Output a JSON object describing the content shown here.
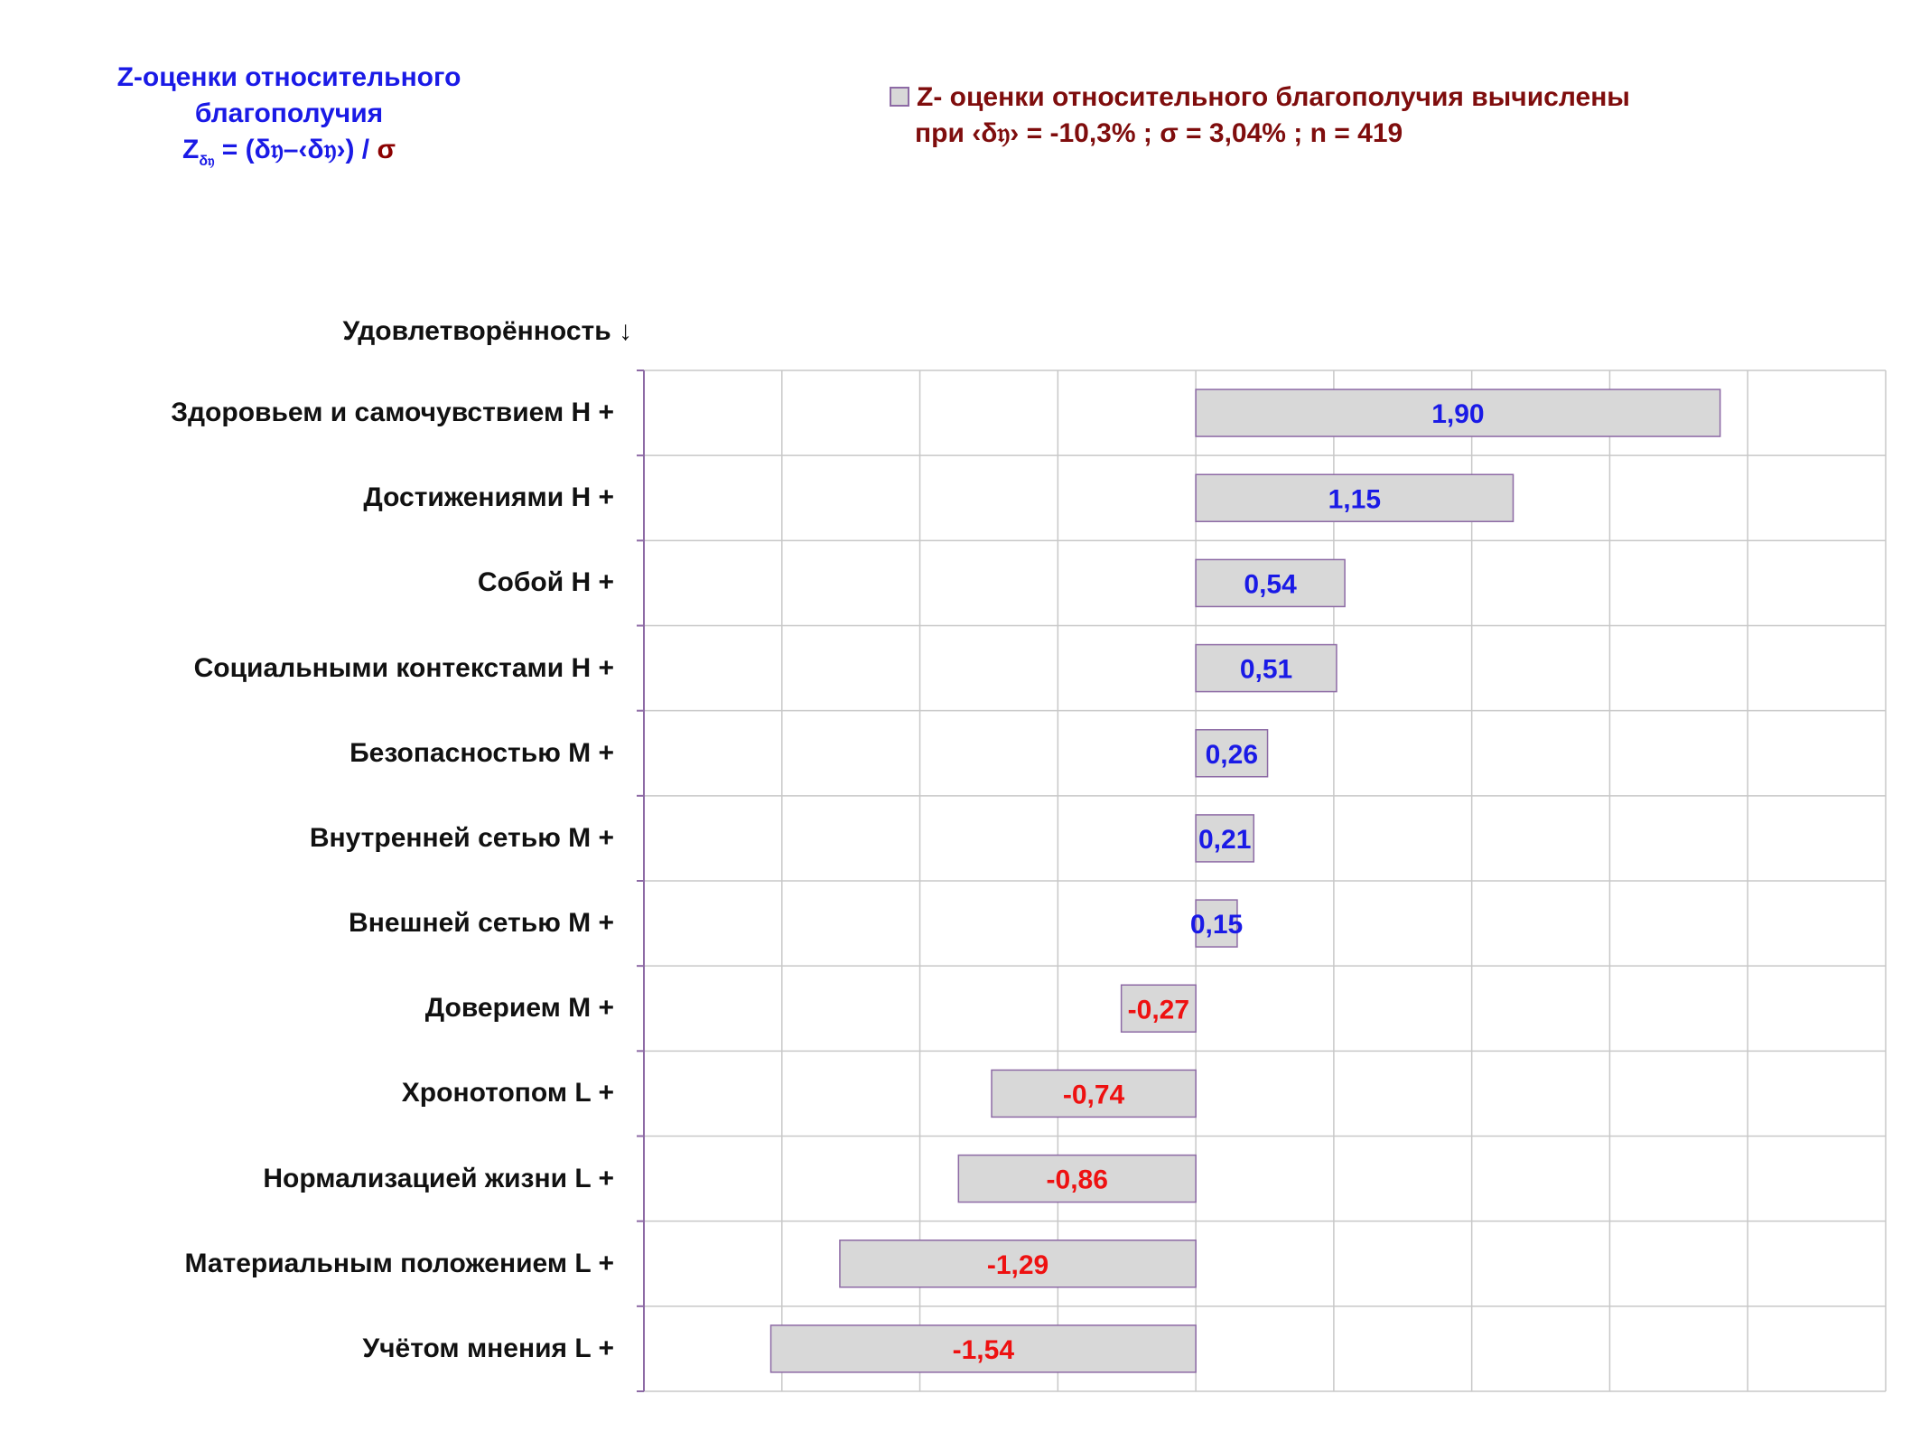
{
  "title_block": {
    "line1": "Z-оценки  относительного",
    "line2": "благополучия",
    "formula_z": "Z",
    "formula_sub": "δ𝔶",
    "formula_body": " = (δ𝔶–‹δ𝔶›) /",
    "formula_sigma": "σ"
  },
  "legend": {
    "line1": "Z- оценки относительного благополучия вычислены",
    "line2": "при ‹δ𝔶› = -10,3% ; σ = 3,04% ; n = 419"
  },
  "colors": {
    "positive_label": "#1a1ae6",
    "negative_label": "#ee1111",
    "bar_fill": "#d8d8d8",
    "bar_stroke": "#8d6aa5",
    "grid": "#c8c8c8",
    "axis": "#8d6aa5"
  },
  "chart_data": {
    "type": "bar",
    "orientation": "horizontal",
    "category_header": "Удовлетворённость ↓",
    "categories": [
      "Здоровьем и самочувствием  H +",
      "Достижениями  H +",
      "Собой  H +",
      "Социальными контекстами  H +",
      "Безопасностью  M +",
      "Внутренней сетью  M +",
      "Внешней сетью  M +",
      "Доверием  M +",
      "Хронотопом  L +",
      "Нормализацией жизни  L +",
      "Материальным положением  L +",
      "Учётом мнения  L +"
    ],
    "values": [
      1.9,
      1.15,
      0.54,
      0.51,
      0.26,
      0.21,
      0.15,
      -0.27,
      -0.74,
      -0.86,
      -1.29,
      -1.54
    ],
    "data_labels": [
      "1,90",
      "1,15",
      "0,54",
      "0,51",
      "0,26",
      "0,21",
      "0,15",
      "-0,27",
      "-0,74",
      "-0,86",
      "-1,29",
      "-1,54"
    ],
    "xlim": [
      -2.0,
      2.5
    ],
    "grid": true,
    "legend_position": "top-right"
  }
}
